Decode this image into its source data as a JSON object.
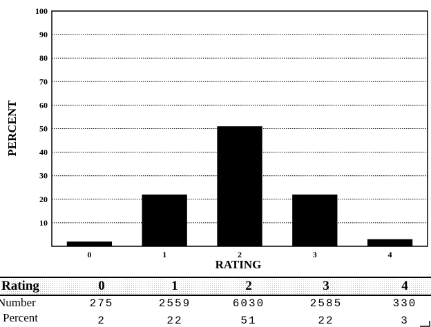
{
  "chart_data": {
    "type": "bar",
    "categories": [
      "0",
      "1",
      "2",
      "3",
      "4"
    ],
    "values": [
      2,
      22,
      51,
      22,
      3
    ],
    "title": "",
    "xlabel": "RATING",
    "ylabel": "PERCENT",
    "ylim": [
      0,
      100
    ],
    "yticks": [
      10,
      20,
      30,
      40,
      50,
      60,
      70,
      80,
      90,
      100
    ],
    "grid": true,
    "bar_color": "#000000"
  },
  "table": {
    "header_label": "Rating",
    "columns": [
      "0",
      "1",
      "2",
      "3",
      "4"
    ],
    "number_label": "Number",
    "numbers": [
      "275",
      "2559",
      "6030",
      "2585",
      "330"
    ],
    "percent_label": "Percent",
    "percents": [
      "2",
      "22",
      "51",
      "22",
      "3"
    ]
  }
}
